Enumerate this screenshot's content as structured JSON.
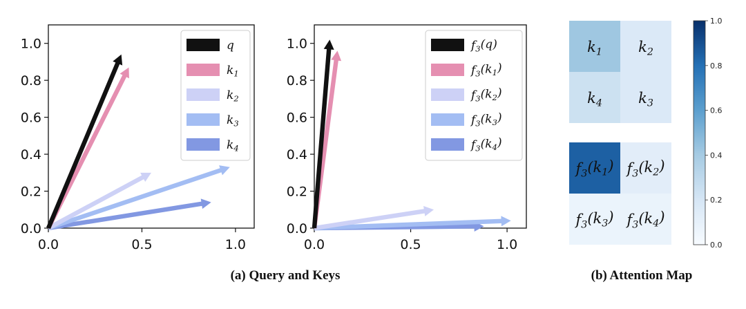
{
  "chart_data": [
    {
      "type": "vector-plot",
      "xlim": [
        0,
        1.1
      ],
      "ylim": [
        0,
        1.1
      ],
      "xticks": [
        "0.0",
        "0.5",
        "1.0"
      ],
      "yticks": [
        "0.0",
        "0.2",
        "0.4",
        "0.6",
        "0.8",
        "1.0"
      ],
      "x_tick_values": [
        0,
        0.5,
        1.0
      ],
      "y_tick_values": [
        0,
        0.2,
        0.4,
        0.6,
        0.8,
        1.0
      ],
      "legend_position": "top-right",
      "series": [
        {
          "name": "q",
          "color": "#111111",
          "x": 0.39,
          "y": 0.94
        },
        {
          "name": "k1",
          "color": "#e58fb1",
          "x": 0.43,
          "y": 0.87
        },
        {
          "name": "k2",
          "color": "#cdd1f6",
          "x": 0.55,
          "y": 0.3
        },
        {
          "name": "k3",
          "color": "#a3bdf3",
          "x": 0.97,
          "y": 0.33
        },
        {
          "name": "k4",
          "color": "#8298e2",
          "x": 0.87,
          "y": 0.14
        }
      ]
    },
    {
      "type": "vector-plot",
      "xlim": [
        0,
        1.1
      ],
      "ylim": [
        0,
        1.1
      ],
      "xticks": [
        "0.0",
        "0.5",
        "1.0"
      ],
      "yticks": [
        "0.0",
        "0.2",
        "0.4",
        "0.6",
        "0.8",
        "1.0"
      ],
      "x_tick_values": [
        0,
        0.5,
        1.0
      ],
      "y_tick_values": [
        0,
        0.2,
        0.4,
        0.6,
        0.8,
        1.0
      ],
      "legend_position": "top-right",
      "series": [
        {
          "name": "f3(q)",
          "color": "#111111",
          "x": 0.08,
          "y": 1.02
        },
        {
          "name": "f3(k1)",
          "color": "#e58fb1",
          "x": 0.12,
          "y": 0.96
        },
        {
          "name": "f3(k2)",
          "color": "#cdd1f6",
          "x": 0.62,
          "y": 0.1
        },
        {
          "name": "f3(k3)",
          "color": "#a3bdf3",
          "x": 1.02,
          "y": 0.04
        },
        {
          "name": "f3(k4)",
          "color": "#8298e2",
          "x": 0.88,
          "y": 0.01
        }
      ]
    },
    {
      "type": "heatmap",
      "colorbar_ticks": [
        "0.0",
        "0.2",
        "0.4",
        "0.6",
        "0.8",
        "1.0"
      ],
      "colorbar_tick_values": [
        0,
        0.2,
        0.4,
        0.6,
        0.8,
        1.0
      ],
      "colorbar_range": [
        0,
        1
      ],
      "grids": [
        {
          "cells": [
            {
              "label": "k1",
              "value": 0.42
            },
            {
              "label": "k2",
              "value": 0.17
            },
            {
              "label": "k4",
              "value": 0.24
            },
            {
              "label": "k3",
              "value": 0.17
            }
          ]
        },
        {
          "cells": [
            {
              "label": "f3(k1)",
              "value": 0.85
            },
            {
              "label": "f3(k2)",
              "value": 0.13
            },
            {
              "label": "f3(k3)",
              "value": 0.07
            },
            {
              "label": "f3(k4)",
              "value": 0.08
            }
          ]
        }
      ]
    }
  ],
  "captions": {
    "left": "(a) Query and Keys",
    "right": "(b) Attention Map"
  }
}
